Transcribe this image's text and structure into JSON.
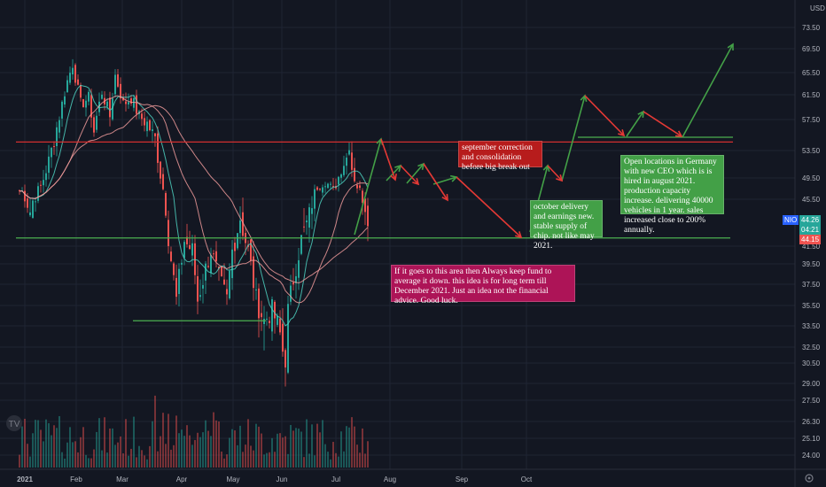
{
  "header": {
    "currency": "USD"
  },
  "colors": {
    "background": "#131722",
    "grid": "#1f2433",
    "candle_up": "#26a69a",
    "candle_down": "#ef5350",
    "ma_fast": "#4dd0c0",
    "ma_slow": "#ef9a9a",
    "resistance": "#d32f2f",
    "support": "#4caf50",
    "arrow_up": "#43a047",
    "arrow_down": "#e53935",
    "note_red": "#b71c1c",
    "note_green": "#43a047",
    "note_magenta": "#ad1457"
  },
  "chart_data": {
    "type": "candlestick",
    "symbol": "NIO",
    "last_price": "44.26",
    "countdown": "04:21",
    "prev_price": "44.15",
    "y_ticks": [
      "73.50",
      "69.50",
      "65.50",
      "61.50",
      "57.50",
      "53.50",
      "49.50",
      "45.50",
      "41.50",
      "39.50",
      "37.50",
      "35.50",
      "33.50",
      "32.50",
      "30.50",
      "29.00",
      "27.50",
      "26.30",
      "25.10",
      "24.00"
    ],
    "y_tick_values": [
      73.5,
      69.5,
      65.5,
      61.5,
      57.5,
      53.5,
      49.5,
      45.5,
      41.5,
      39.5,
      37.5,
      35.5,
      33.5,
      32.5,
      30.5,
      29.0,
      27.5,
      26.3,
      25.1,
      24.0
    ],
    "x_ticks": [
      "2021",
      "Feb",
      "Mar",
      "Apr",
      "May",
      "Jun",
      "Jul",
      "Aug",
      "Sep",
      "Oct"
    ],
    "resistance_level": 54.6,
    "support_level": 42.2,
    "march_support_level": 34.0,
    "candle_anchors": [
      [
        1,
        47
      ],
      [
        4,
        44.5
      ],
      [
        8,
        48
      ],
      [
        11,
        52
      ],
      [
        15,
        58
      ],
      [
        18,
        64
      ],
      [
        20,
        67
      ],
      [
        23,
        60
      ],
      [
        26,
        61
      ],
      [
        28,
        56
      ],
      [
        31,
        62
      ],
      [
        34,
        58
      ],
      [
        36,
        65
      ],
      [
        39,
        60
      ],
      [
        42,
        61
      ],
      [
        45,
        58
      ],
      [
        48,
        57
      ],
      [
        51,
        55
      ],
      [
        53,
        50
      ],
      [
        55,
        45
      ],
      [
        57,
        40
      ],
      [
        59,
        36
      ],
      [
        62,
        42
      ],
      [
        65,
        41
      ],
      [
        67,
        36
      ],
      [
        70,
        39
      ],
      [
        72,
        41
      ],
      [
        75,
        38
      ],
      [
        78,
        36
      ],
      [
        80,
        41
      ],
      [
        83,
        44
      ],
      [
        86,
        41
      ],
      [
        89,
        36
      ],
      [
        92,
        34
      ],
      [
        95,
        35
      ],
      [
        98,
        33
      ],
      [
        100,
        31
      ],
      [
        101,
        35
      ],
      [
        103,
        38
      ],
      [
        106,
        42
      ],
      [
        109,
        44
      ],
      [
        112,
        48
      ],
      [
        115,
        49
      ],
      [
        118,
        47
      ],
      [
        121,
        51
      ],
      [
        123,
        52.5
      ],
      [
        124,
        54.5
      ],
      [
        125,
        51
      ],
      [
        127,
        48
      ],
      [
        129,
        46
      ],
      [
        131,
        44.3
      ]
    ],
    "volume_note": "volume bars"
  },
  "projections": {
    "up_arrows": [
      [
        [
          400,
          265
        ],
        [
          430,
          157
        ]
      ],
      [
        [
          436,
          204
        ],
        [
          452,
          187
        ]
      ],
      [
        [
          459,
          207
        ],
        [
          478,
          185
        ]
      ],
      [
        [
          489,
          208
        ],
        [
          515,
          200
        ]
      ],
      [
        [
          598,
          262
        ],
        [
          618,
          187
        ]
      ],
      [
        [
          634,
          204
        ],
        [
          660,
          108
        ]
      ],
      [
        [
          707,
          154
        ],
        [
          726,
          126
        ]
      ],
      [
        [
          770,
          155
        ],
        [
          827,
          50
        ]
      ]
    ],
    "down_arrows": [
      [
        [
          430,
          157
        ],
        [
          446,
          203
        ]
      ],
      [
        [
          452,
          187
        ],
        [
          472,
          208
        ]
      ],
      [
        [
          478,
          185
        ],
        [
          505,
          226
        ]
      ],
      [
        [
          515,
          200
        ],
        [
          588,
          268
        ]
      ],
      [
        [
          618,
          187
        ],
        [
          634,
          204
        ]
      ],
      [
        [
          660,
          108
        ],
        [
          704,
          153
        ]
      ],
      [
        [
          726,
          126
        ],
        [
          769,
          154
        ]
      ]
    ]
  },
  "notes": {
    "september": "september correction and consolidation before big break out",
    "october": "october delivery and earnings new. stable supply of chip. not like may 2021.",
    "germany": "Open locations in Germany with new CEO which is is hired in august 2021. production capacity increase. delivering 40000 vehicles in 1 year. sales increased close to 200% annually.",
    "advice": "If it goes to this area then Always keep fund to average it down. this idea is for long term till December 2021. Just an idea not the financial advice. Good luck."
  }
}
